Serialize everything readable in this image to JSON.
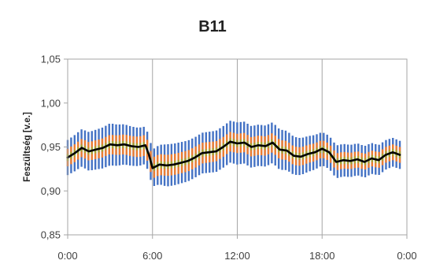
{
  "chart_data": {
    "type": "line",
    "title": "B11",
    "xlabel": "",
    "ylabel": "Feszültség [v.e.]",
    "x_ticks": [
      "0:00",
      "6:00",
      "12:00",
      "18:00",
      "0:00"
    ],
    "x_range_hours": [
      0,
      24
    ],
    "y_ticks": [
      "0,85",
      "0,90",
      "0,95",
      "1,00",
      "1,05"
    ],
    "ylim": [
      0.85,
      1.05
    ],
    "grid": {
      "vertical": true,
      "horizontal": false
    },
    "legend": "none",
    "colors": {
      "band_outer": "#4472C4",
      "band_middle": "#ED7D31",
      "band_inner": "#A5A533",
      "mean_line": "#000000",
      "grid": "#A6A6A6",
      "axis": "#A6A6A6"
    },
    "series": [
      {
        "role": "mean",
        "x": [
          0,
          0.5,
          1,
          1.5,
          2,
          2.5,
          3,
          3.5,
          4,
          4.5,
          5,
          5.5,
          5.75,
          6,
          6.5,
          7,
          7.5,
          8,
          8.5,
          9,
          9.5,
          10,
          10.5,
          11,
          11.5,
          12,
          12.5,
          13,
          13.5,
          14,
          14.5,
          15,
          15.5,
          16,
          16.5,
          17,
          17.5,
          18,
          18.5,
          19,
          19.5,
          20,
          20.5,
          21,
          21.5,
          22,
          22.5,
          23,
          23.5
        ],
        "y": [
          0.938,
          0.943,
          0.949,
          0.945,
          0.947,
          0.949,
          0.953,
          0.952,
          0.953,
          0.951,
          0.95,
          0.952,
          0.941,
          0.926,
          0.93,
          0.929,
          0.93,
          0.932,
          0.934,
          0.938,
          0.943,
          0.944,
          0.945,
          0.95,
          0.956,
          0.954,
          0.955,
          0.95,
          0.952,
          0.951,
          0.955,
          0.947,
          0.946,
          0.94,
          0.939,
          0.942,
          0.944,
          0.948,
          0.944,
          0.933,
          0.935,
          0.934,
          0.936,
          0.933,
          0.937,
          0.935,
          0.941,
          0.944,
          0.941
        ]
      },
      {
        "role": "band_outer_half_width",
        "x": [
          0,
          3,
          5.75,
          6,
          7,
          9,
          12,
          15,
          18,
          21,
          23.5
        ],
        "y": [
          0.02,
          0.024,
          0.021,
          0.021,
          0.024,
          0.023,
          0.024,
          0.023,
          0.019,
          0.018,
          0.016
        ]
      },
      {
        "role": "band_middle_half_width",
        "x": [
          0,
          3,
          6,
          9,
          12,
          15,
          18,
          21,
          23.5
        ],
        "y": [
          0.01,
          0.011,
          0.012,
          0.012,
          0.011,
          0.011,
          0.01,
          0.009,
          0.009
        ]
      },
      {
        "role": "band_inner_half_width",
        "x": [
          0,
          12,
          23.5
        ],
        "y": [
          0.004,
          0.004,
          0.004
        ]
      }
    ]
  }
}
